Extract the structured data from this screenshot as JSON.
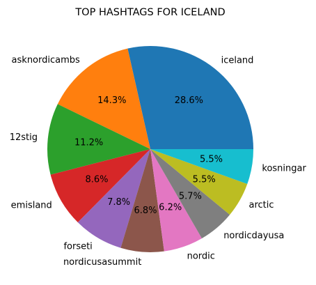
{
  "chart_data": {
    "type": "pie",
    "title": "TOP HASHTAGS FOR ICELAND",
    "categories": [
      "iceland",
      "asknordicambs",
      "12stig",
      "emisland",
      "forseti",
      "nordicusasummit",
      "nordic",
      "nordicdayusa",
      "arctic",
      "kosningar"
    ],
    "values": [
      28.6,
      14.3,
      11.2,
      8.6,
      7.8,
      6.8,
      6.2,
      5.7,
      5.5,
      5.5
    ],
    "percent_labels": [
      "28.6%",
      "14.3%",
      "11.2%",
      "8.6%",
      "7.8%",
      "6.8%",
      "6.2%",
      "5.7%",
      "5.5%",
      "5.5%"
    ],
    "colors": [
      "#1f77b4",
      "#ff7f0e",
      "#2ca02c",
      "#d62728",
      "#9467bd",
      "#8c564b",
      "#e377c2",
      "#7f7f7f",
      "#bcbd22",
      "#17becf"
    ],
    "start_angle_deg": 0,
    "direction": "counterclockwise"
  }
}
